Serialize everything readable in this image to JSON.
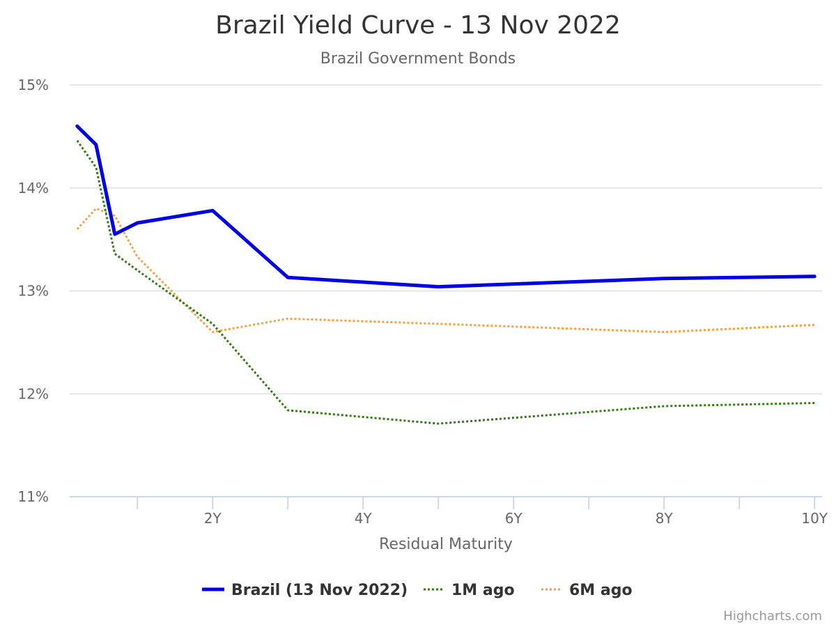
{
  "credits": "Highcharts.com",
  "colors": {
    "background": "#ffffff",
    "grid": "#e6e6e6",
    "axis_line": "#ccd6eb",
    "brazil": "#0000e6",
    "m1": "#2e7d10",
    "m6": "#f7a042"
  },
  "chart_data": {
    "type": "line",
    "title": "Brazil Yield Curve - 13 Nov 2022",
    "subtitle": "Brazil Government Bonds",
    "xlabel": "Residual Maturity",
    "ylabel": "",
    "xlim": [
      0.1,
      10.1
    ],
    "ylim": [
      11,
      15
    ],
    "x_ticks": [
      2,
      4,
      6,
      8,
      10
    ],
    "x_tick_labels": [
      "2Y",
      "4Y",
      "6Y",
      "8Y",
      "10Y"
    ],
    "x_minor_ticks": [
      1,
      2,
      3,
      4,
      5,
      6,
      7,
      8,
      9,
      10
    ],
    "y_ticks": [
      11,
      12,
      13,
      14,
      15
    ],
    "y_tick_labels": [
      "11%",
      "12%",
      "13%",
      "14%",
      "15%"
    ],
    "grid": true,
    "legend": "bottom-center",
    "series": [
      {
        "name": "Brazil (13 Nov 2022)",
        "style": "solid",
        "x": [
          0.2,
          0.45,
          0.7,
          1.0,
          2.0,
          3.0,
          5.0,
          8.0,
          10.0
        ],
        "y": [
          14.6,
          14.42,
          13.55,
          13.66,
          13.78,
          13.13,
          13.04,
          13.12,
          13.14
        ]
      },
      {
        "name": "1M ago",
        "style": "dotted",
        "x": [
          0.2,
          0.45,
          0.7,
          1.0,
          2.0,
          3.0,
          5.0,
          8.0,
          10.0
        ],
        "y": [
          14.46,
          14.2,
          13.36,
          13.2,
          12.68,
          11.84,
          11.71,
          11.88,
          11.91
        ]
      },
      {
        "name": "6M ago",
        "style": "dotted",
        "x": [
          0.2,
          0.45,
          0.7,
          1.0,
          2.0,
          3.0,
          5.0,
          8.0,
          10.0
        ],
        "y": [
          13.6,
          13.8,
          13.73,
          13.33,
          12.6,
          12.73,
          12.68,
          12.6,
          12.67
        ]
      }
    ]
  }
}
